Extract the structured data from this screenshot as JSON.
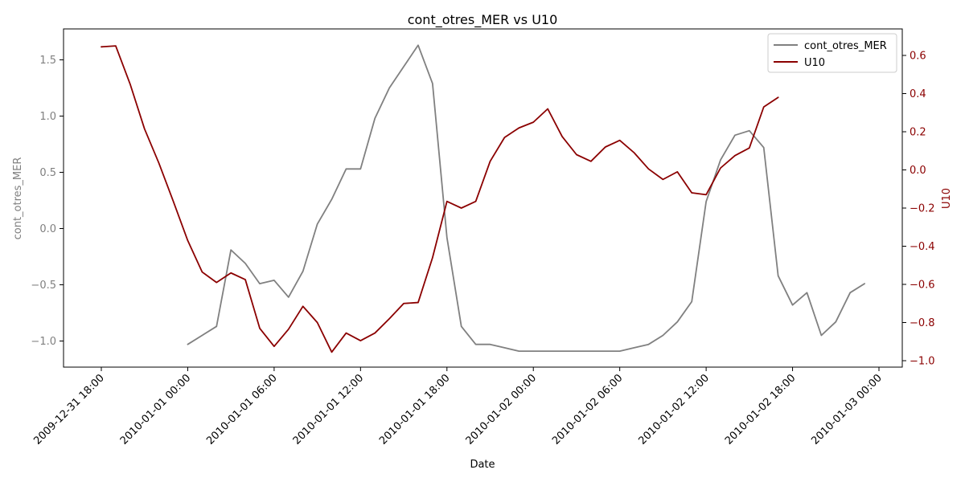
{
  "chart_data": {
    "type": "line",
    "title": "cont_otres_MER vs U10",
    "xlabel": "Date",
    "ylabel_left": "cont_otres_MER",
    "ylabel_right": "U10",
    "x_ticks": [
      "2009-12-31 18:00",
      "2010-01-01 00:00",
      "2010-01-01 06:00",
      "2010-01-01 12:00",
      "2010-01-01 18:00",
      "2010-01-02 00:00",
      "2010-01-02 06:00",
      "2010-01-02 12:00",
      "2010-01-02 18:00",
      "2010-01-03 00:00"
    ],
    "y_ticks_left": [
      "−1.0",
      "−0.5",
      "0.0",
      "0.5",
      "1.0",
      "1.5"
    ],
    "y_ticks_right": [
      "−1.0",
      "−0.8",
      "−0.6",
      "−0.4",
      "−0.2",
      "0.0",
      "0.2",
      "0.4",
      "0.6"
    ],
    "legend_position": "top-right",
    "grid": false,
    "colors": {
      "cont_otres_MER": "#808080",
      "U10": "#8b0000"
    },
    "series": [
      {
        "name": "cont_otres_MER",
        "axis": "left",
        "x": [
          "2010-01-01 00:00",
          "2010-01-01 01:00",
          "2010-01-01 02:00",
          "2010-01-01 03:00",
          "2010-01-01 04:00",
          "2010-01-01 05:00",
          "2010-01-01 06:00",
          "2010-01-01 07:00",
          "2010-01-01 08:00",
          "2010-01-01 09:00",
          "2010-01-01 10:00",
          "2010-01-01 11:00",
          "2010-01-01 12:00",
          "2010-01-01 13:00",
          "2010-01-01 14:00",
          "2010-01-01 15:00",
          "2010-01-01 16:00",
          "2010-01-01 17:00",
          "2010-01-01 18:00",
          "2010-01-01 19:00",
          "2010-01-01 20:00",
          "2010-01-01 21:00",
          "2010-01-01 22:00",
          "2010-01-01 23:00",
          "2010-01-02 00:00",
          "2010-01-02 01:00",
          "2010-01-02 02:00",
          "2010-01-02 03:00",
          "2010-01-02 04:00",
          "2010-01-02 05:00",
          "2010-01-02 06:00",
          "2010-01-02 07:00",
          "2010-01-02 08:00",
          "2010-01-02 09:00",
          "2010-01-02 10:00",
          "2010-01-02 11:00",
          "2010-01-02 12:00",
          "2010-01-02 13:00",
          "2010-01-02 14:00",
          "2010-01-02 15:00",
          "2010-01-02 16:00",
          "2010-01-02 17:00",
          "2010-01-02 18:00",
          "2010-01-02 19:00",
          "2010-01-02 20:00",
          "2010-01-02 21:00",
          "2010-01-02 22:00",
          "2010-01-02 23:00"
        ],
        "values": [
          -1.03,
          -0.95,
          -0.87,
          -0.19,
          -0.31,
          -0.49,
          -0.46,
          -0.61,
          -0.38,
          0.04,
          0.26,
          0.53,
          0.53,
          0.98,
          1.25,
          1.44,
          1.63,
          1.29,
          -0.08,
          -0.87,
          -1.03,
          -1.03,
          -1.06,
          -1.09,
          -1.09,
          -1.09,
          -1.09,
          -1.09,
          -1.09,
          -1.09,
          -1.09,
          -1.06,
          -1.03,
          -0.95,
          -0.83,
          -0.65,
          0.24,
          0.61,
          0.83,
          0.87,
          0.72,
          -0.42,
          -0.68,
          -0.57,
          -0.95,
          -0.83,
          -0.57,
          -0.49
        ]
      },
      {
        "name": "U10",
        "axis": "right",
        "x": [
          "2009-12-31 18:00",
          "2009-12-31 19:00",
          "2009-12-31 20:00",
          "2009-12-31 21:00",
          "2009-12-31 22:00",
          "2009-12-31 23:00",
          "2010-01-01 00:00",
          "2010-01-01 01:00",
          "2010-01-01 02:00",
          "2010-01-01 03:00",
          "2010-01-01 04:00",
          "2010-01-01 05:00",
          "2010-01-01 06:00",
          "2010-01-01 07:00",
          "2010-01-01 08:00",
          "2010-01-01 09:00",
          "2010-01-01 10:00",
          "2010-01-01 11:00",
          "2010-01-01 12:00",
          "2010-01-01 13:00",
          "2010-01-01 14:00",
          "2010-01-01 15:00",
          "2010-01-01 16:00",
          "2010-01-01 17:00",
          "2010-01-01 18:00",
          "2010-01-01 19:00",
          "2010-01-01 20:00",
          "2010-01-01 21:00",
          "2010-01-01 22:00",
          "2010-01-01 23:00",
          "2010-01-02 00:00",
          "2010-01-02 01:00",
          "2010-01-02 02:00",
          "2010-01-02 03:00",
          "2010-01-02 04:00",
          "2010-01-02 05:00",
          "2010-01-02 06:00",
          "2010-01-02 07:00",
          "2010-01-02 08:00",
          "2010-01-02 09:00",
          "2010-01-02 10:00",
          "2010-01-02 11:00",
          "2010-01-02 12:00",
          "2010-01-02 13:00",
          "2010-01-02 14:00",
          "2010-01-02 15:00",
          "2010-01-02 16:00",
          "2010-01-02 17:00"
        ],
        "values": [
          0.645,
          0.65,
          0.45,
          0.215,
          0.035,
          -0.165,
          -0.37,
          -0.535,
          -0.59,
          -0.54,
          -0.575,
          -0.83,
          -0.925,
          -0.835,
          -0.715,
          -0.8,
          -0.955,
          -0.855,
          -0.895,
          -0.855,
          -0.78,
          -0.7,
          -0.695,
          -0.46,
          -0.165,
          -0.2,
          -0.165,
          0.045,
          0.17,
          0.22,
          0.25,
          0.32,
          0.175,
          0.08,
          0.045,
          0.12,
          0.155,
          0.09,
          0.005,
          -0.05,
          -0.01,
          -0.12,
          -0.13,
          0.01,
          0.075,
          0.115,
          0.33,
          0.38
        ]
      }
    ]
  }
}
